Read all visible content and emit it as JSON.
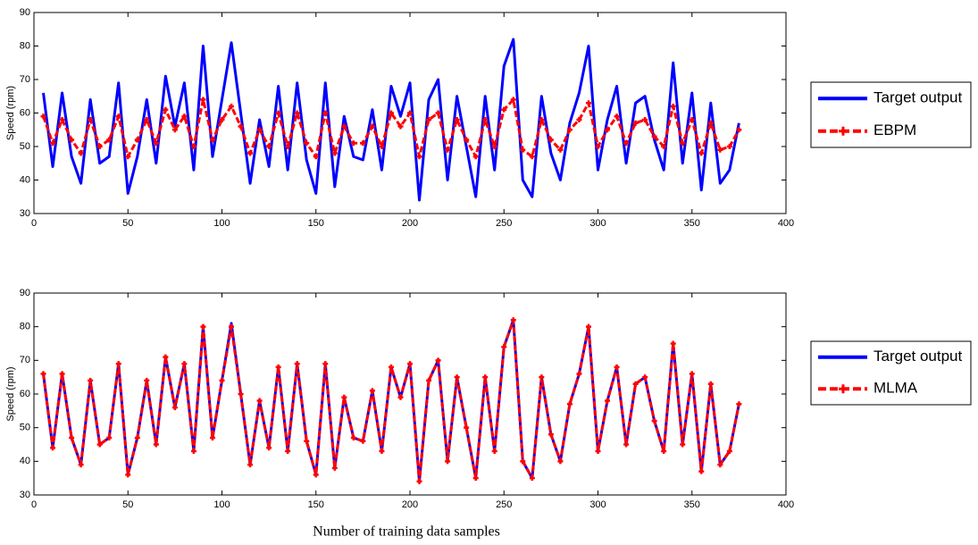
{
  "chart_data": [
    {
      "type": "line",
      "ylabel": "Speed (rpm)",
      "x": [
        5,
        10,
        15,
        20,
        25,
        30,
        35,
        40,
        45,
        50,
        55,
        60,
        65,
        70,
        75,
        80,
        85,
        90,
        95,
        100,
        105,
        110,
        115,
        120,
        125,
        130,
        135,
        140,
        145,
        150,
        155,
        160,
        165,
        170,
        175,
        180,
        185,
        190,
        195,
        200,
        205,
        210,
        215,
        220,
        225,
        230,
        235,
        240,
        245,
        250,
        255,
        260,
        265,
        270,
        275,
        280,
        285,
        290,
        295,
        300,
        305,
        310,
        315,
        320,
        325,
        330,
        335,
        340,
        345,
        350,
        355,
        360,
        365,
        370,
        375
      ],
      "series": [
        {
          "name": "Target output",
          "color": "#0000ff",
          "dash": false,
          "marker": null,
          "values": [
            66,
            44,
            66,
            47,
            39,
            64,
            45,
            47,
            69,
            36,
            47,
            64,
            45,
            71,
            56,
            69,
            43,
            80,
            47,
            64,
            81,
            60,
            39,
            58,
            44,
            68,
            43,
            69,
            46,
            36,
            69,
            38,
            59,
            47,
            46,
            61,
            43,
            68,
            59,
            69,
            34,
            64,
            70,
            40,
            65,
            50,
            35,
            65,
            43,
            74,
            82,
            40,
            35,
            65,
            48,
            40,
            57,
            66,
            80,
            43,
            58,
            68,
            45,
            63,
            65,
            52,
            43,
            75,
            45,
            66,
            37,
            63,
            39,
            43,
            57
          ]
        },
        {
          "name": "EBPM",
          "color": "#ff0000",
          "dash": true,
          "marker": "plus",
          "values": [
            59,
            51,
            58,
            52,
            48,
            58,
            50,
            52,
            59,
            47,
            52,
            58,
            51,
            61,
            55,
            59,
            50,
            64,
            52,
            58,
            62,
            56,
            48,
            55,
            50,
            60,
            50,
            60,
            51,
            47,
            60,
            48,
            56,
            51,
            51,
            56,
            50,
            60,
            56,
            60,
            47,
            58,
            60,
            49,
            58,
            52,
            47,
            58,
            50,
            61,
            64,
            49,
            47,
            58,
            52,
            49,
            55,
            58,
            63,
            50,
            55,
            59,
            51,
            57,
            58,
            53,
            50,
            62,
            51,
            58,
            48,
            57,
            49,
            50,
            55
          ]
        }
      ],
      "xlim": [
        0,
        400
      ],
      "xticks": [
        0,
        50,
        100,
        150,
        200,
        250,
        300,
        350,
        400
      ],
      "ylim": [
        30,
        90
      ],
      "yticks": [
        30,
        40,
        50,
        60,
        70,
        80,
        90
      ],
      "legend": "right"
    },
    {
      "type": "line",
      "ylabel": "Speed (rpm)",
      "xlabel": "Number of training data samples",
      "x": [
        5,
        10,
        15,
        20,
        25,
        30,
        35,
        40,
        45,
        50,
        55,
        60,
        65,
        70,
        75,
        80,
        85,
        90,
        95,
        100,
        105,
        110,
        115,
        120,
        125,
        130,
        135,
        140,
        145,
        150,
        155,
        160,
        165,
        170,
        175,
        180,
        185,
        190,
        195,
        200,
        205,
        210,
        215,
        220,
        225,
        230,
        235,
        240,
        245,
        250,
        255,
        260,
        265,
        270,
        275,
        280,
        285,
        290,
        295,
        300,
        305,
        310,
        315,
        320,
        325,
        330,
        335,
        340,
        345,
        350,
        355,
        360,
        365,
        370,
        375
      ],
      "series": [
        {
          "name": "Target output",
          "color": "#0000ff",
          "dash": false,
          "marker": null,
          "values": [
            66,
            44,
            66,
            47,
            39,
            64,
            45,
            47,
            69,
            36,
            47,
            64,
            45,
            71,
            56,
            69,
            43,
            80,
            47,
            64,
            81,
            60,
            39,
            58,
            44,
            68,
            43,
            69,
            46,
            36,
            69,
            38,
            59,
            47,
            46,
            61,
            43,
            68,
            59,
            69,
            34,
            64,
            70,
            40,
            65,
            50,
            35,
            65,
            43,
            74,
            82,
            40,
            35,
            65,
            48,
            40,
            57,
            66,
            80,
            43,
            58,
            68,
            45,
            63,
            65,
            52,
            43,
            75,
            45,
            66,
            37,
            63,
            39,
            43,
            57
          ]
        },
        {
          "name": "MLMA",
          "color": "#ff0000",
          "dash": true,
          "marker": "plus",
          "values": [
            66,
            44,
            66,
            47,
            39,
            64,
            45,
            47,
            69,
            36,
            47,
            64,
            45,
            71,
            56,
            69,
            43,
            80,
            47,
            64,
            80,
            60,
            39,
            58,
            44,
            68,
            43,
            69,
            46,
            36,
            69,
            38,
            59,
            47,
            46,
            61,
            43,
            68,
            59,
            69,
            34,
            64,
            70,
            40,
            65,
            50,
            35,
            65,
            43,
            74,
            82,
            40,
            35,
            65,
            48,
            40,
            57,
            66,
            80,
            43,
            58,
            68,
            45,
            63,
            65,
            52,
            43,
            75,
            45,
            66,
            37,
            63,
            39,
            43,
            57
          ]
        }
      ],
      "xlim": [
        0,
        400
      ],
      "xticks": [
        0,
        50,
        100,
        150,
        200,
        250,
        300,
        350,
        400
      ],
      "ylim": [
        30,
        90
      ],
      "yticks": [
        30,
        40,
        50,
        60,
        70,
        80,
        90
      ],
      "legend": "right"
    }
  ]
}
